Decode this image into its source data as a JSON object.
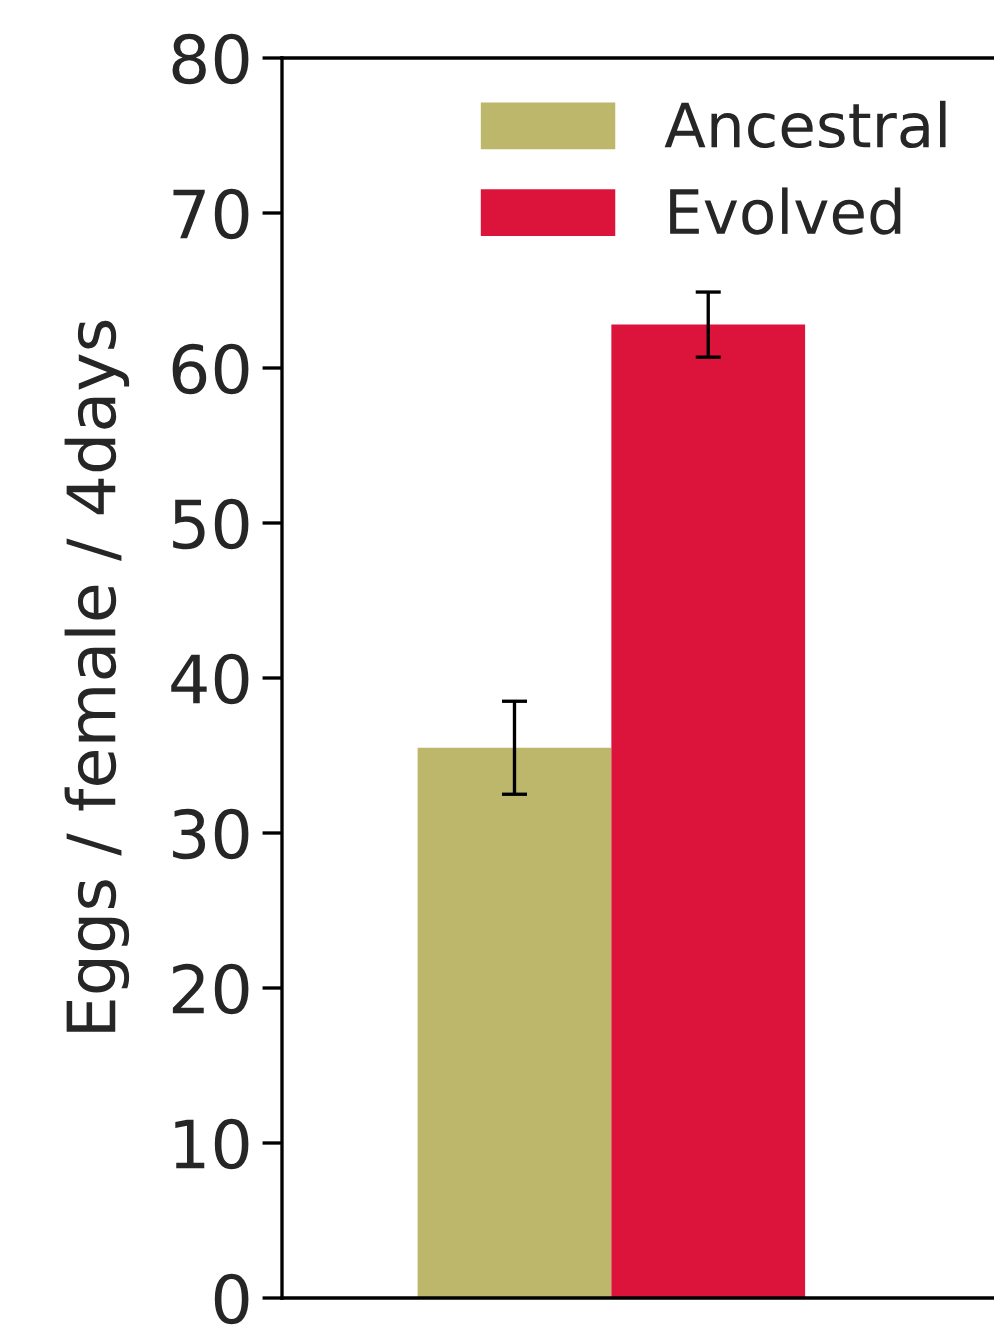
{
  "chart_data": {
    "type": "bar",
    "categories": [
      null
    ],
    "ylabel": "Eggs / female / 4days",
    "ylim": [
      0,
      80
    ],
    "yticks": [
      0,
      10,
      20,
      30,
      40,
      50,
      60,
      70,
      80
    ],
    "series": [
      {
        "name": "Ancestral",
        "color": "#bdb76b",
        "values": [
          35.5
        ],
        "errors": [
          3.0
        ]
      },
      {
        "name": "Evolved",
        "color": "#dc143c",
        "values": [
          62.8
        ],
        "errors": [
          2.1
        ]
      }
    ],
    "legend": "top right",
    "tick_labels": "y",
    "grid": false
  }
}
